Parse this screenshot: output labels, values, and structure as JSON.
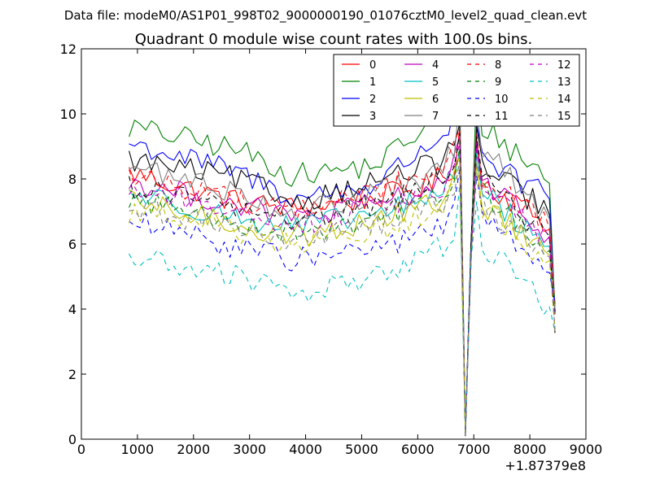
{
  "chart_data": {
    "type": "line",
    "suptitle": "Data file: modeM0/AS1P01_998T02_9000000190_01076cztM0_level2_quad_clean.evt",
    "title": "Quadrant 0 module wise count rates with 100.0s bins.",
    "xlabel": "",
    "ylabel": "",
    "x_offset_label": "+1.87379e8",
    "xlim": [
      0,
      9000
    ],
    "ylim": [
      0,
      12
    ],
    "xticks": [
      0,
      1000,
      2000,
      3000,
      4000,
      5000,
      6000,
      7000,
      8000,
      9000
    ],
    "yticks": [
      0,
      2,
      4,
      6,
      8,
      10,
      12
    ],
    "grid": false,
    "legend_position": "top-right",
    "legend_columns": 4,
    "x_start": 850,
    "x_end": 8450,
    "x_step": 100,
    "dip_center": 6850,
    "series": [
      {
        "name": "0",
        "color": "#ff0000",
        "dash": "solid",
        "base": [
          8.2,
          7.3,
          7.1,
          7.4,
          7.9
        ],
        "peak_left": 9.6,
        "peak_right": 9.2
      },
      {
        "name": "1",
        "color": "#008000",
        "dash": "solid",
        "base": [
          9.6,
          8.9,
          8.1,
          8.4,
          9.9
        ],
        "peak_left": 10.6,
        "peak_right": 10.9
      },
      {
        "name": "2",
        "color": "#0000ff",
        "dash": "solid",
        "base": [
          9.1,
          8.2,
          7.4,
          7.8,
          9.3
        ],
        "peak_left": 10.1,
        "peak_right": 9.7
      },
      {
        "name": "3",
        "color": "#000000",
        "dash": "solid",
        "base": [
          8.6,
          8.0,
          7.3,
          7.9,
          8.5
        ],
        "peak_left": 9.7,
        "peak_right": 9.6
      },
      {
        "name": "4",
        "color": "#bf00bf",
        "dash": "solid",
        "base": [
          7.9,
          7.2,
          6.8,
          7.2,
          7.8
        ],
        "peak_left": 9.3,
        "peak_right": 9.1
      },
      {
        "name": "5",
        "color": "#00bfbf",
        "dash": "solid",
        "base": [
          7.6,
          6.8,
          6.5,
          6.9,
          7.5
        ],
        "peak_left": 8.9,
        "peak_right": 8.8
      },
      {
        "name": "6",
        "color": "#bfbf00",
        "dash": "solid",
        "base": [
          7.3,
          6.6,
          6.2,
          6.7,
          7.3
        ],
        "peak_left": 8.7,
        "peak_right": 8.5
      },
      {
        "name": "7",
        "color": "#808080",
        "dash": "solid",
        "base": [
          8.4,
          7.6,
          6.9,
          7.5,
          8.2
        ],
        "peak_left": 10.6,
        "peak_right": 10.2
      },
      {
        "name": "8",
        "color": "#ff0000",
        "dash": "dashed",
        "base": [
          8.1,
          7.4,
          7.0,
          7.6,
          8.3
        ],
        "peak_left": 9.5,
        "peak_right": 9.4
      },
      {
        "name": "9",
        "color": "#008000",
        "dash": "dashed",
        "base": [
          7.4,
          6.7,
          6.3,
          6.8,
          7.5
        ],
        "peak_left": 9.0,
        "peak_right": 8.9
      },
      {
        "name": "10",
        "color": "#0000ff",
        "dash": "dashed",
        "base": [
          6.7,
          5.9,
          5.5,
          5.9,
          6.4
        ],
        "peak_left": 8.3,
        "peak_right": 8.1
      },
      {
        "name": "11",
        "color": "#000000",
        "dash": "dashed",
        "base": [
          7.8,
          7.1,
          6.7,
          7.2,
          8.0
        ],
        "peak_left": 9.4,
        "peak_right": 9.3
      },
      {
        "name": "12",
        "color": "#bf00bf",
        "dash": "dashed",
        "base": [
          7.7,
          7.0,
          6.6,
          7.1,
          7.6
        ],
        "peak_left": 9.1,
        "peak_right": 9.0
      },
      {
        "name": "13",
        "color": "#00bfbf",
        "dash": "dashed",
        "base": [
          5.6,
          5.0,
          4.4,
          5.0,
          5.8
        ],
        "peak_left": 7.8,
        "peak_right": 7.3
      },
      {
        "name": "14",
        "color": "#bfbf00",
        "dash": "dashed",
        "base": [
          7.0,
          6.4,
          5.9,
          6.4,
          7.1
        ],
        "peak_left": 8.5,
        "peak_right": 8.4
      },
      {
        "name": "15",
        "color": "#808080",
        "dash": "dashed",
        "base": [
          7.1,
          6.5,
          6.0,
          6.6,
          7.2
        ],
        "peak_left": 8.6,
        "peak_right": 8.5
      }
    ]
  }
}
